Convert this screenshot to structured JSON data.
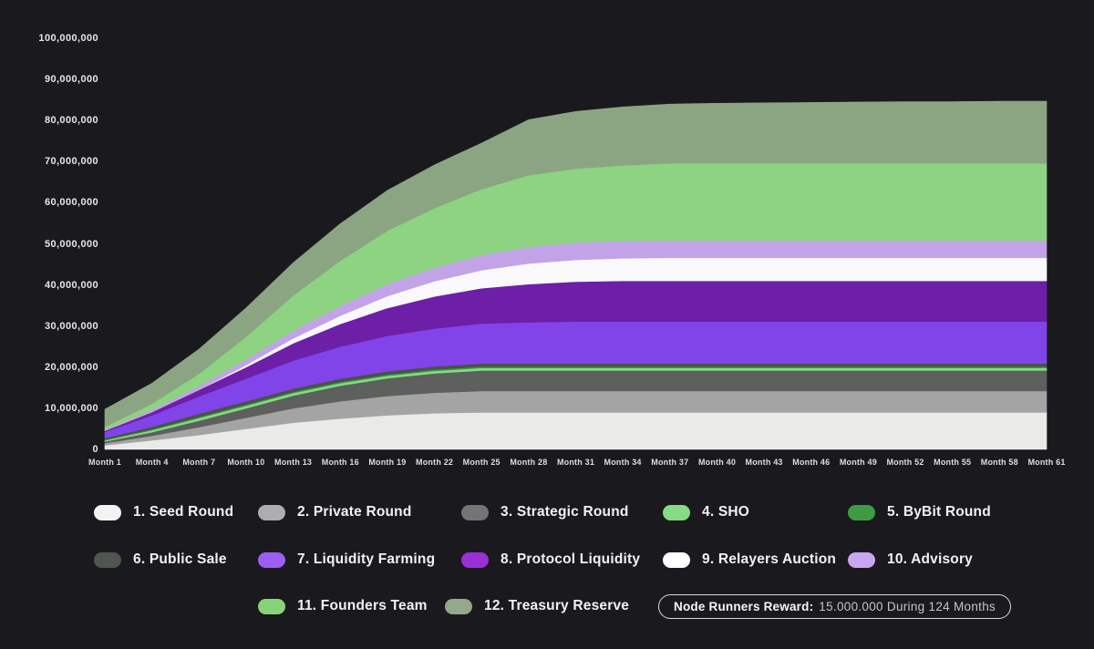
{
  "background_color": "#1a1a1e",
  "chart_data": {
    "type": "area",
    "stacked": true,
    "title": "",
    "unit": "tokens",
    "value_scale": 1000000,
    "grid": false,
    "legend_position": "bottom",
    "ylim": [
      0,
      100000000
    ],
    "x": [
      1,
      4,
      7,
      10,
      13,
      16,
      19,
      22,
      25,
      28,
      31,
      34,
      37,
      40,
      43,
      46,
      49,
      52,
      55,
      58,
      61
    ],
    "x_tick_labels": [
      "Month 1",
      "Month 4",
      "Month 7",
      "Month 10",
      "Month 13",
      "Month 16",
      "Month 19",
      "Month 22",
      "Month 25",
      "Month 28",
      "Month 31",
      "Month 34",
      "Month 37",
      "Month 40",
      "Month 43",
      "Month 46",
      "Month 49",
      "Month 52",
      "Month 55",
      "Month 58",
      "Month 61"
    ],
    "y_tick_labels": [
      "100,000,000",
      "90,000,000",
      "80,000,000",
      "70,000,000",
      "60,000,000",
      "50,000,000",
      "40,000,000",
      "30,000,000",
      "20,000,000",
      "10,000,000",
      "0"
    ],
    "values_unit_note": "values are millions of tokens",
    "series": [
      {
        "name": "1. Seed Round",
        "color": "#eaeae8",
        "legend_color": "#f3f3f1",
        "values": [
          1,
          2.2,
          3.5,
          5,
          6.5,
          7.5,
          8.3,
          8.8,
          9,
          9,
          9,
          9,
          9,
          9,
          9,
          9,
          9,
          9,
          9,
          9,
          9
        ]
      },
      {
        "name": "2. Private Round",
        "color": "#a4a4a4",
        "legend_color": "#adadad",
        "values": [
          0.5,
          1.1,
          1.9,
          2.7,
          3.5,
          4.2,
          4.7,
          5,
          5.2,
          5.2,
          5.2,
          5.2,
          5.2,
          5.2,
          5.2,
          5.2,
          5.2,
          5.2,
          5.2,
          5.2,
          5.2
        ]
      },
      {
        "name": "3. Strategic Round",
        "color": "#5d605d",
        "legend_color": "#747474",
        "values": [
          0.4,
          0.9,
          1.6,
          2.3,
          3.1,
          3.8,
          4.3,
          4.7,
          5,
          5,
          5,
          5,
          5,
          5,
          5,
          5,
          5,
          5,
          5,
          5,
          5
        ]
      },
      {
        "name": "4. SHO",
        "color": "#84dc84",
        "legend_color": "#84dc84",
        "values": [
          0.3,
          0.45,
          0.6,
          0.6,
          0.6,
          0.6,
          0.6,
          0.6,
          0.6,
          0.6,
          0.6,
          0.6,
          0.6,
          0.6,
          0.6,
          0.6,
          0.6,
          0.6,
          0.6,
          0.6,
          0.6
        ]
      },
      {
        "name": "5. ByBit Round",
        "color": "#3f9b43",
        "legend_color": "#3f9b43",
        "values": [
          0.15,
          0.25,
          0.3,
          0.3,
          0.3,
          0.3,
          0.3,
          0.3,
          0.3,
          0.3,
          0.3,
          0.3,
          0.3,
          0.3,
          0.3,
          0.3,
          0.3,
          0.3,
          0.3,
          0.3,
          0.3
        ]
      },
      {
        "name": "6. Public Sale",
        "color": "#4a514b",
        "legend_color": "#4f564f",
        "values": [
          0.4,
          0.6,
          0.8,
          0.8,
          0.8,
          0.8,
          0.8,
          0.8,
          0.8,
          0.8,
          0.8,
          0.8,
          0.8,
          0.8,
          0.8,
          0.8,
          0.8,
          0.8,
          0.8,
          0.8,
          0.8
        ]
      },
      {
        "name": "7. Liquidity Farming",
        "color": "#8144e9",
        "legend_color": "#9a5ff2",
        "values": [
          1.5,
          2.8,
          4.2,
          5.5,
          6.8,
          7.8,
          8.6,
          9.2,
          9.7,
          10,
          10.2,
          10.2,
          10.2,
          10.2,
          10.2,
          10.2,
          10.2,
          10.2,
          10.2,
          10.2,
          10.2
        ]
      },
      {
        "name": "8. Protocol Liquidity",
        "color": "#6d1fa8",
        "legend_color": "#9a2fd6",
        "values": [
          0.3,
          0.8,
          1.6,
          2.8,
          4.2,
          5.5,
          6.8,
          7.8,
          8.6,
          9.3,
          9.7,
          9.9,
          9.9,
          9.9,
          9.9,
          9.9,
          9.9,
          9.9,
          9.9,
          9.9,
          9.9
        ]
      },
      {
        "name": "9. Relayers Auction",
        "color": "#f9f9fb",
        "legend_color": "#ffffff",
        "values": [
          0,
          0,
          0,
          0.5,
          1.2,
          2,
          2.9,
          3.7,
          4.4,
          5,
          5.3,
          5.5,
          5.6,
          5.6,
          5.6,
          5.6,
          5.6,
          5.6,
          5.6,
          5.6,
          5.6
        ]
      },
      {
        "name": "10. Advisory",
        "color": "#c2a3e8",
        "legend_color": "#cba6f0",
        "values": [
          0.2,
          0.5,
          0.9,
          1.4,
          1.9,
          2.4,
          2.9,
          3.3,
          3.7,
          4,
          4.2,
          4.2,
          4.2,
          4.2,
          4.2,
          4.2,
          4.2,
          4.2,
          4.2,
          4.2,
          4.2
        ]
      },
      {
        "name": "11. Founders Team",
        "color": "#8dd381",
        "legend_color": "#87d37a",
        "values": [
          0.7,
          1.5,
          3,
          5.5,
          8.5,
          11,
          13,
          14.5,
          16,
          17.5,
          18,
          18.4,
          18.8,
          18.8,
          18.8,
          18.8,
          18.8,
          18.8,
          18.8,
          18.8,
          18.8
        ]
      },
      {
        "name": "12. Treasury Reserve",
        "color": "#8ba583",
        "legend_color": "#93a98b",
        "values": [
          4.3,
          5,
          6,
          7,
          8,
          9,
          9.8,
          10.5,
          11.2,
          13.5,
          13.9,
          14.2,
          14.4,
          14.6,
          14.7,
          14.8,
          14.9,
          15,
          15,
          15.1,
          15.1
        ]
      }
    ]
  },
  "note_pill": {
    "bold": "Node Runners Reward:",
    "rest": "15.000.000 During 124 Months"
  }
}
